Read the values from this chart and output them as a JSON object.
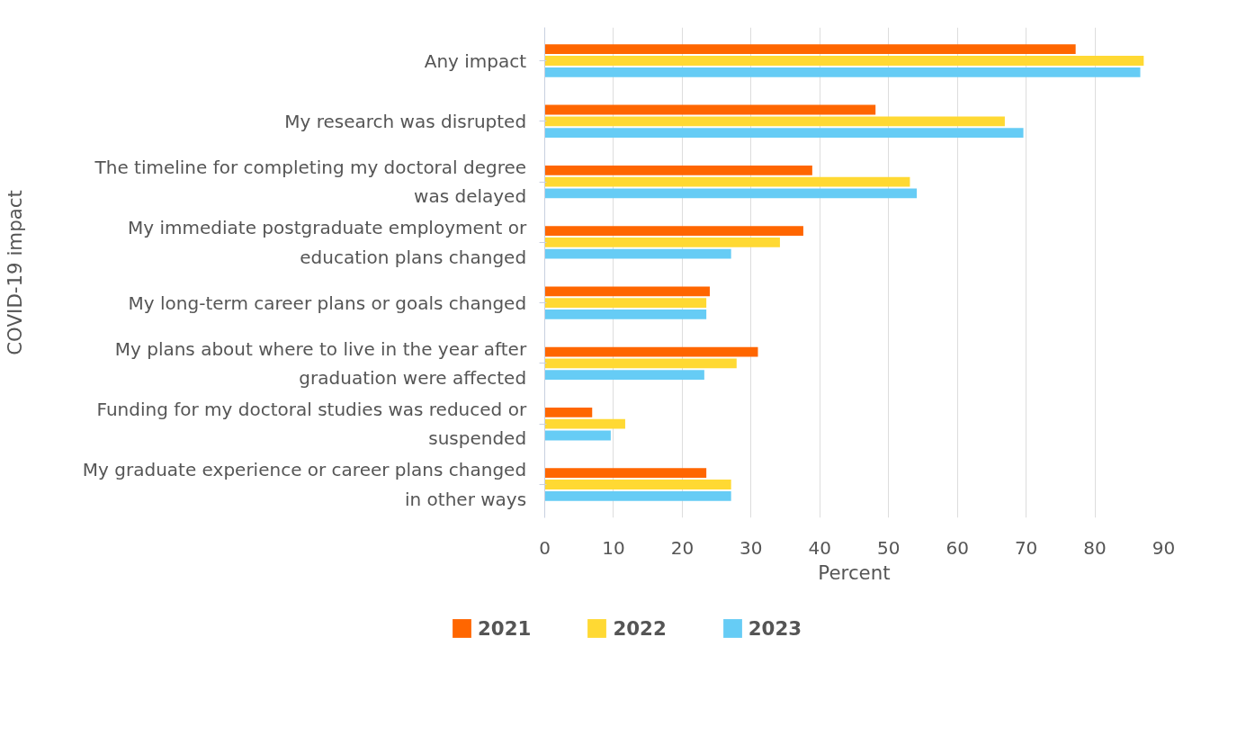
{
  "chart_data": {
    "type": "bar",
    "orientation": "horizontal",
    "xlabel": "Percent",
    "ylabel": "COVID-19 impact",
    "categories": [
      "Any impact",
      "My research was disrupted",
      "The timeline for completing my doctoral degree was delayed",
      "My immediate postgraduate employment or education plans changed",
      "My long-term career plans or goals changed",
      "My plans about where to live in the year after graduation were affected",
      "Funding for my doctoral studies was reduced or suspended",
      "My graduate experience or career plans changed in other ways"
    ],
    "series": [
      {
        "name": "2021",
        "color": "#ff6600",
        "values": [
          77.2,
          48.1,
          38.9,
          37.6,
          24.0,
          31.0,
          6.9,
          23.5
        ]
      },
      {
        "name": "2022",
        "color": "#ffd933",
        "values": [
          87.1,
          66.9,
          53.1,
          34.2,
          23.5,
          27.9,
          11.7,
          27.1
        ]
      },
      {
        "name": "2023",
        "color": "#66ccf5",
        "values": [
          86.6,
          69.6,
          54.1,
          27.1,
          23.5,
          23.2,
          9.6,
          27.1
        ]
      }
    ],
    "xlim": [
      0,
      90
    ],
    "xticks": [
      0,
      10,
      20,
      30,
      40,
      50,
      60,
      70,
      80,
      90
    ],
    "grid": "x",
    "legend": "bottom"
  }
}
